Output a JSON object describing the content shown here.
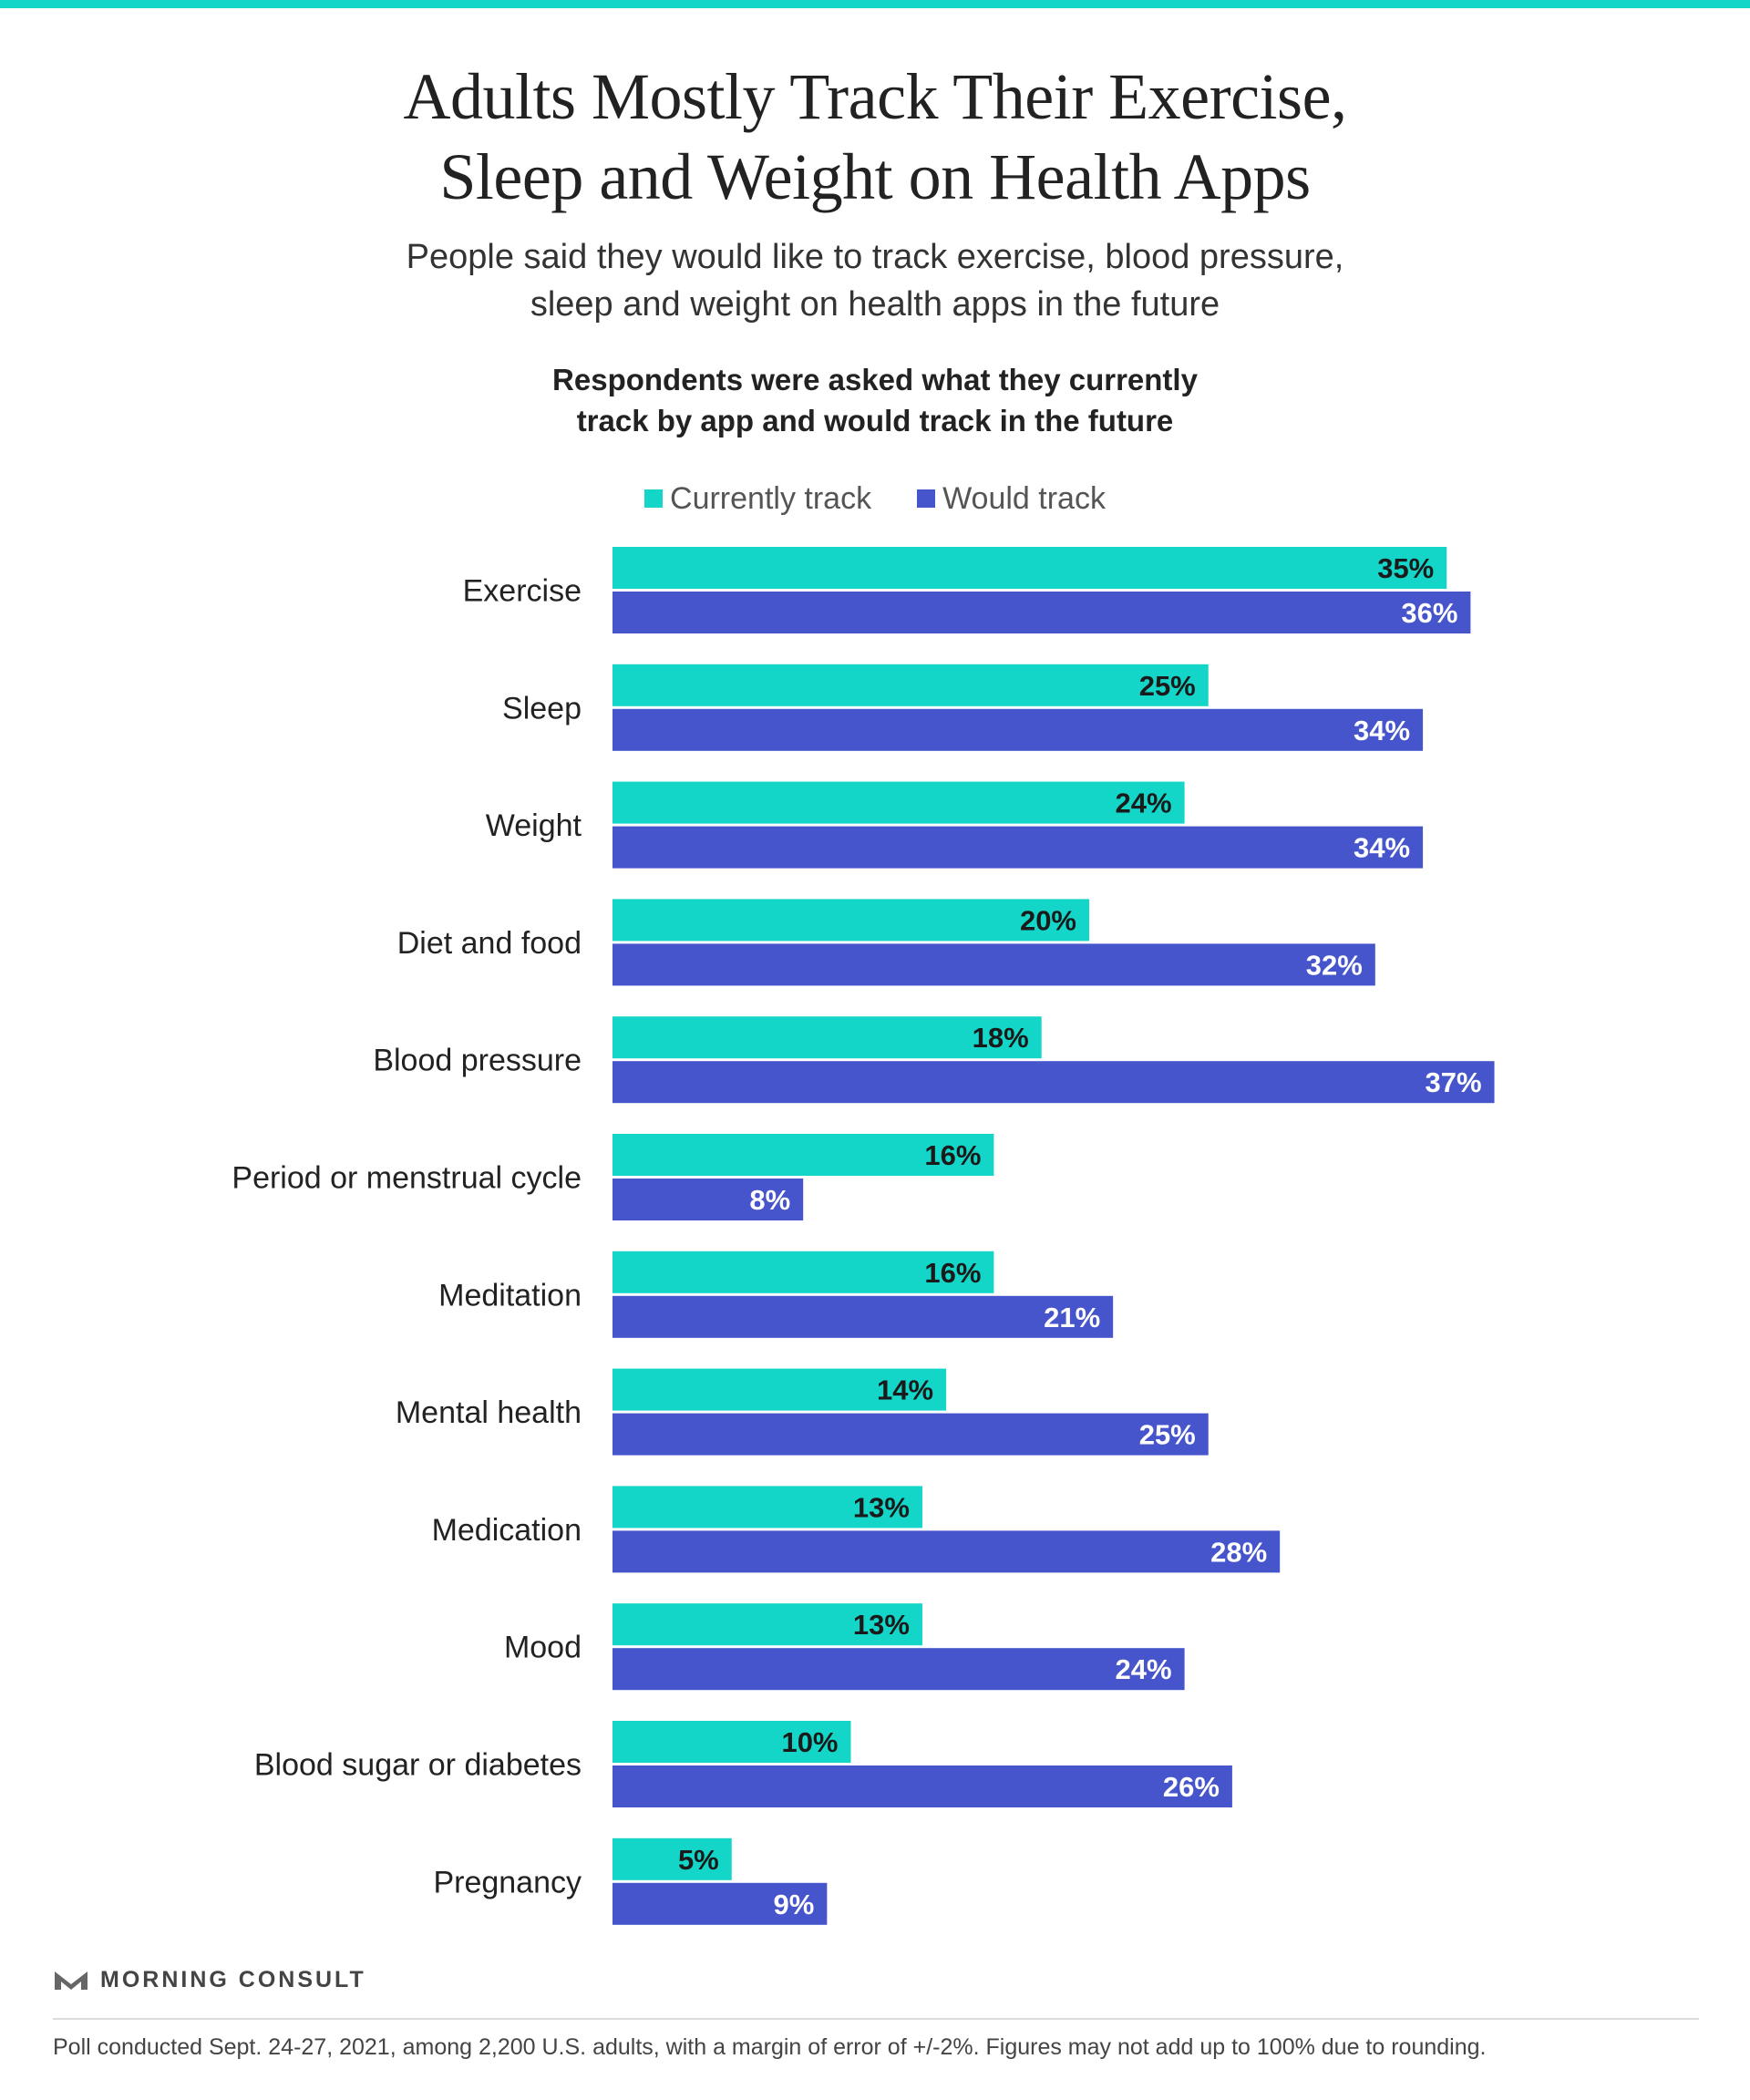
{
  "title_line1": "Adults Mostly Track Their Exercise,",
  "title_line2": "Sleep and Weight on Health Apps",
  "subtitle_line1": "People said they would like to track exercise, blood pressure,",
  "subtitle_line2": "sleep and weight on health apps in the future",
  "question_line1": "Respondents were asked what they currently",
  "question_line2": "track by app and would track in the future",
  "brand_name": "MORNING CONSULT",
  "brand_icon": "morning-consult-logo-icon",
  "footnote": "Poll conducted Sept. 24-27, 2021, among 2,200 U.S. adults, with a margin of error of +/-2%. Figures may not add up to 100% due to rounding.",
  "colors": {
    "currently": "#14d6c8",
    "would": "#4655cc",
    "currently_label": "#1a1a1a",
    "would_label": "#ffffff"
  },
  "chart_data": {
    "type": "bar",
    "orientation": "horizontal",
    "title": "Adults Mostly Track Their Exercise, Sleep and Weight on Health Apps",
    "categories": [
      "Exercise",
      "Sleep",
      "Weight",
      "Diet and food",
      "Blood pressure",
      "Period or menstrual cycle",
      "Meditation",
      "Mental health",
      "Medication",
      "Mood",
      "Blood sugar or diabetes",
      "Pregnancy"
    ],
    "series": [
      {
        "name": "Currently track",
        "values": [
          35,
          25,
          24,
          20,
          18,
          16,
          16,
          14,
          13,
          13,
          10,
          5
        ],
        "labels": [
          "35%",
          "25%",
          "24%",
          "20%",
          "18%",
          "16%",
          "16%",
          "14%",
          "13%",
          "13%",
          "10%",
          "5%"
        ]
      },
      {
        "name": "Would track",
        "values": [
          36,
          34,
          34,
          32,
          37,
          8,
          21,
          25,
          28,
          24,
          26,
          9
        ],
        "labels": [
          "36%",
          "34%",
          "34%",
          "32%",
          "37%",
          "8%",
          "21%",
          "25%",
          "28%",
          "24%",
          "26%",
          "9%"
        ]
      }
    ],
    "unit": "%",
    "xlim": [
      0,
      37
    ],
    "grid": false,
    "legend_position": "top-center"
  }
}
